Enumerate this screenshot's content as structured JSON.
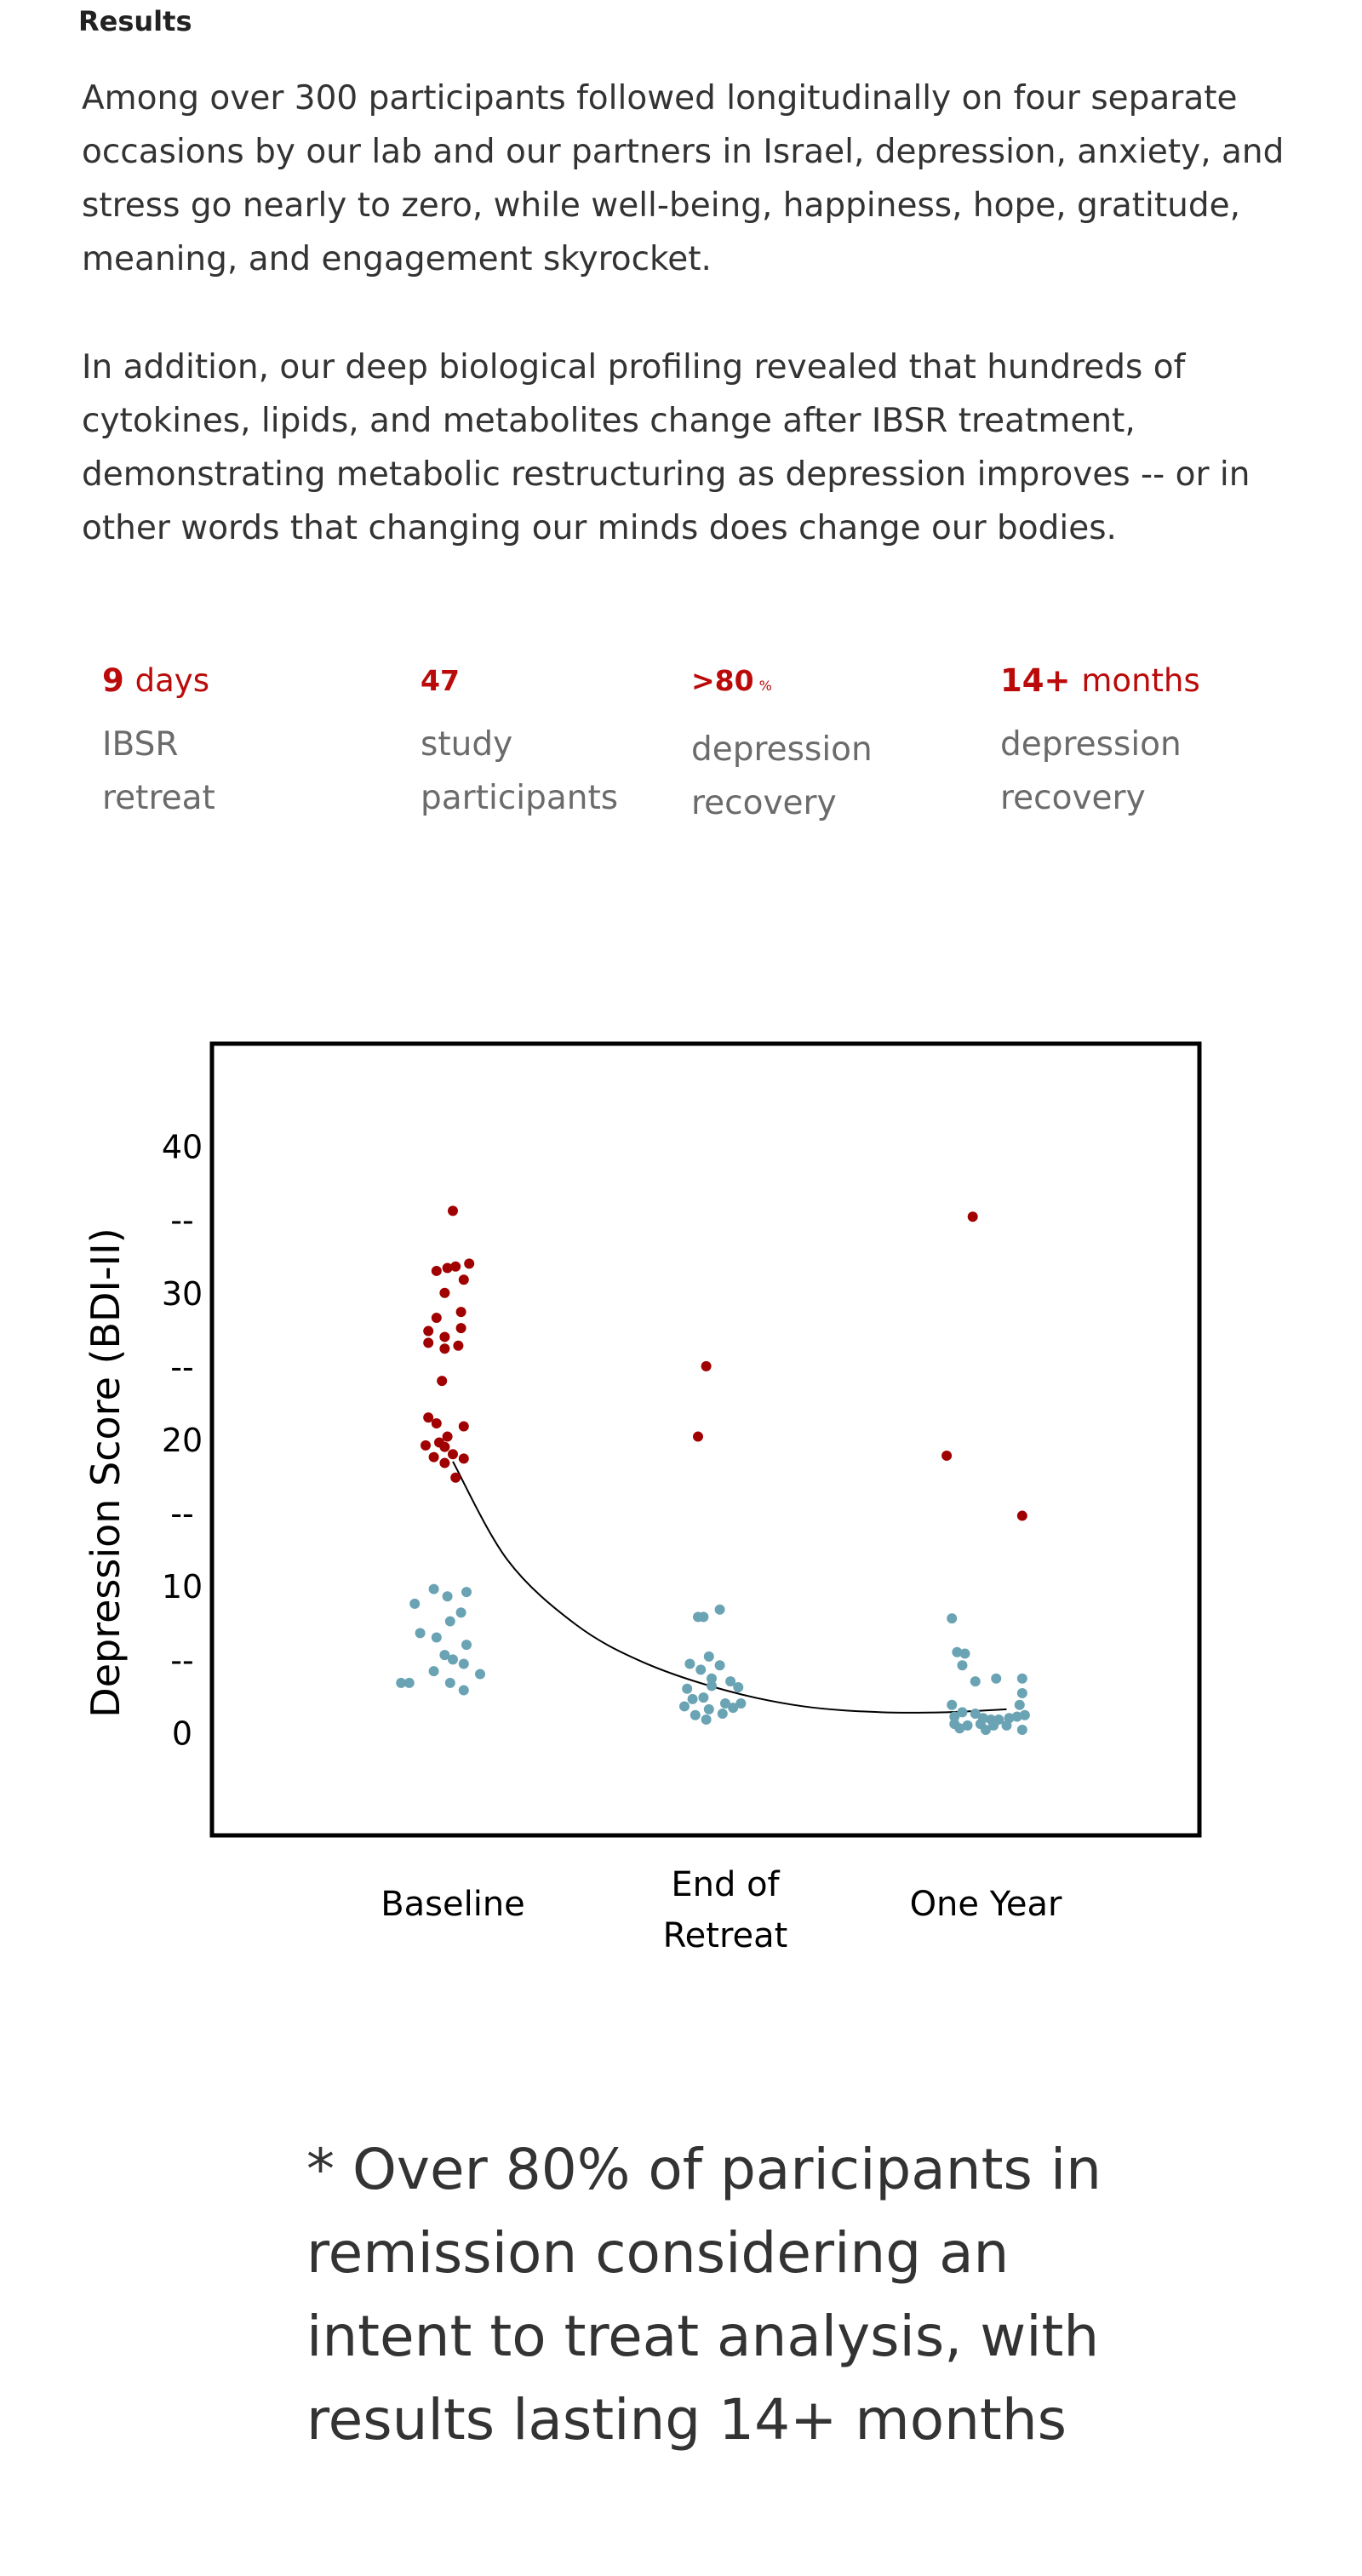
{
  "section_title": "Results",
  "paragraphs": [
    "Among over 300 participants followed longitudinally on four separate occasions by our lab and our partners in Israel, depression, anxiety, and stress go nearly to zero, while well-being, happiness, hope, gratitude, meaning, and engagement skyrocket.",
    "In addition, our deep biological profiling revealed that hundreds of cytokines, lipids, and metabolites change after IBSR treatment, demonstrating metabolic restructuring as depression improves -- or in other words that changing our minds does change our bodies."
  ],
  "stats": [
    {
      "number": "9",
      "unit": "days",
      "label": "IBSR retreat"
    },
    {
      "number": "47",
      "unit": "",
      "label": "study participants"
    },
    {
      "number": ">80",
      "unit": "%",
      "label": "depression recovery"
    },
    {
      "number": "14+",
      "unit": "months",
      "label": "depression recovery"
    }
  ],
  "colors": {
    "accent": "#bb0a0a",
    "high_score": "#a10000",
    "low_score": "#6aa3b3",
    "text": "#333333",
    "muted": "#6b6b6b"
  },
  "chart_data": {
    "type": "scatter",
    "title": "",
    "xlabel": "",
    "ylabel": "Depression Score (BDI-II)",
    "categories": [
      "Baseline",
      "End of Retreat",
      "One Year"
    ],
    "ylim": [
      -7,
      47
    ],
    "y_ticks": [
      {
        "value": 40,
        "label": "40"
      },
      {
        "value": 35,
        "label": "--"
      },
      {
        "value": 30,
        "label": "30"
      },
      {
        "value": 25,
        "label": "--"
      },
      {
        "value": 20,
        "label": "20"
      },
      {
        "value": 15,
        "label": "--"
      },
      {
        "value": 10,
        "label": "10"
      },
      {
        "value": 5,
        "label": "--"
      },
      {
        "value": 0,
        "label": "0"
      }
    ],
    "threshold": 11,
    "grid": false,
    "series": [
      {
        "color": "#a10000",
        "points": [
          {
            "x": 0.0,
            "y": 35.6
          },
          {
            "x": -0.02,
            "y": 31.7
          },
          {
            "x": 0.01,
            "y": 31.8
          },
          {
            "x": 0.06,
            "y": 32.0
          },
          {
            "x": -0.06,
            "y": 31.5
          },
          {
            "x": 0.04,
            "y": 30.9
          },
          {
            "x": -0.03,
            "y": 30.0
          },
          {
            "x": 0.03,
            "y": 28.7
          },
          {
            "x": -0.06,
            "y": 28.3
          },
          {
            "x": 0.03,
            "y": 27.6
          },
          {
            "x": -0.09,
            "y": 27.4
          },
          {
            "x": -0.03,
            "y": 27.0
          },
          {
            "x": -0.03,
            "y": 26.2
          },
          {
            "x": -0.09,
            "y": 26.6
          },
          {
            "x": 0.02,
            "y": 26.4
          },
          {
            "x": -0.04,
            "y": 24.0
          },
          {
            "x": -0.09,
            "y": 21.5
          },
          {
            "x": -0.06,
            "y": 21.1
          },
          {
            "x": 0.04,
            "y": 20.9
          },
          {
            "x": -0.02,
            "y": 20.2
          },
          {
            "x": -0.1,
            "y": 19.6
          },
          {
            "x": -0.05,
            "y": 19.8
          },
          {
            "x": -0.03,
            "y": 19.5
          },
          {
            "x": 0.0,
            "y": 19.0
          },
          {
            "x": -0.07,
            "y": 18.8
          },
          {
            "x": 0.04,
            "y": 18.7
          },
          {
            "x": -0.03,
            "y": 18.4
          },
          {
            "x": 0.01,
            "y": 17.4
          },
          {
            "x": 0.93,
            "y": 25.0
          },
          {
            "x": 0.9,
            "y": 20.2
          },
          {
            "x": 1.95,
            "y": 35.2
          },
          {
            "x": 1.85,
            "y": 18.9
          },
          {
            "x": 2.14,
            "y": 14.8
          }
        ]
      },
      {
        "color": "#6aa3b3",
        "points": [
          {
            "x": -0.07,
            "y": 9.8
          },
          {
            "x": -0.02,
            "y": 9.3
          },
          {
            "x": 0.05,
            "y": 9.6
          },
          {
            "x": -0.14,
            "y": 8.8
          },
          {
            "x": -0.01,
            "y": 7.6
          },
          {
            "x": 0.03,
            "y": 8.2
          },
          {
            "x": -0.12,
            "y": 6.8
          },
          {
            "x": -0.06,
            "y": 6.5
          },
          {
            "x": 0.05,
            "y": 6.0
          },
          {
            "x": -0.03,
            "y": 5.3
          },
          {
            "x": 0.0,
            "y": 5.0
          },
          {
            "x": 0.04,
            "y": 4.7
          },
          {
            "x": -0.07,
            "y": 4.2
          },
          {
            "x": 0.1,
            "y": 4.0
          },
          {
            "x": -0.19,
            "y": 3.4
          },
          {
            "x": -0.16,
            "y": 3.4
          },
          {
            "x": -0.01,
            "y": 3.4
          },
          {
            "x": 0.04,
            "y": 2.9
          },
          {
            "x": 0.98,
            "y": 8.4
          },
          {
            "x": 0.92,
            "y": 7.9
          },
          {
            "x": 0.9,
            "y": 7.9
          },
          {
            "x": 0.94,
            "y": 5.2
          },
          {
            "x": 0.87,
            "y": 4.7
          },
          {
            "x": 0.98,
            "y": 4.6
          },
          {
            "x": 0.91,
            "y": 4.3
          },
          {
            "x": 0.95,
            "y": 3.7
          },
          {
            "x": 1.02,
            "y": 3.5
          },
          {
            "x": 0.86,
            "y": 3.0
          },
          {
            "x": 0.95,
            "y": 3.2
          },
          {
            "x": 1.05,
            "y": 3.1
          },
          {
            "x": 0.88,
            "y": 2.3
          },
          {
            "x": 0.92,
            "y": 2.4
          },
          {
            "x": 1.0,
            "y": 2.0
          },
          {
            "x": 1.06,
            "y": 2.0
          },
          {
            "x": 0.85,
            "y": 1.8
          },
          {
            "x": 0.94,
            "y": 1.6
          },
          {
            "x": 1.03,
            "y": 1.7
          },
          {
            "x": 0.89,
            "y": 1.2
          },
          {
            "x": 0.99,
            "y": 1.3
          },
          {
            "x": 0.93,
            "y": 0.9
          },
          {
            "x": 1.87,
            "y": 7.8
          },
          {
            "x": 1.89,
            "y": 5.5
          },
          {
            "x": 1.92,
            "y": 5.4
          },
          {
            "x": 1.91,
            "y": 4.6
          },
          {
            "x": 1.96,
            "y": 3.5
          },
          {
            "x": 2.04,
            "y": 3.7
          },
          {
            "x": 2.14,
            "y": 3.7
          },
          {
            "x": 2.14,
            "y": 2.7
          },
          {
            "x": 1.87,
            "y": 1.9
          },
          {
            "x": 2.13,
            "y": 1.9
          },
          {
            "x": 1.88,
            "y": 1.1
          },
          {
            "x": 1.91,
            "y": 1.4
          },
          {
            "x": 1.96,
            "y": 1.3
          },
          {
            "x": 1.99,
            "y": 1.0
          },
          {
            "x": 2.02,
            "y": 0.9
          },
          {
            "x": 2.05,
            "y": 0.9
          },
          {
            "x": 2.09,
            "y": 1.0
          },
          {
            "x": 2.12,
            "y": 1.1
          },
          {
            "x": 2.15,
            "y": 1.2
          },
          {
            "x": 1.88,
            "y": 0.6
          },
          {
            "x": 1.93,
            "y": 0.5
          },
          {
            "x": 1.98,
            "y": 0.6
          },
          {
            "x": 2.03,
            "y": 0.5
          },
          {
            "x": 2.08,
            "y": 0.5
          },
          {
            "x": 2.14,
            "y": 0.2
          },
          {
            "x": 1.9,
            "y": 0.3
          },
          {
            "x": 2.0,
            "y": 0.2
          }
        ]
      }
    ],
    "trend_curve": [
      {
        "x": 0.0,
        "y": 18.5
      },
      {
        "x": 0.2,
        "y": 11.8
      },
      {
        "x": 0.45,
        "y": 7.4
      },
      {
        "x": 0.7,
        "y": 4.8
      },
      {
        "x": 1.0,
        "y": 2.9
      },
      {
        "x": 1.3,
        "y": 1.8
      },
      {
        "x": 1.6,
        "y": 1.4
      },
      {
        "x": 1.85,
        "y": 1.4
      },
      {
        "x": 2.08,
        "y": 1.6
      }
    ]
  },
  "footnote": "* Over 80% of paricipants in remission considering an intent to treat analysis, with results lasting 14+ months"
}
